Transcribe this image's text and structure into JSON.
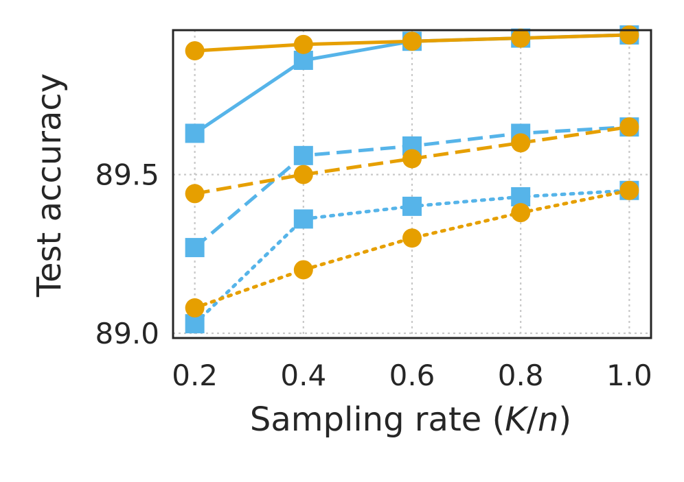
{
  "chart_data": {
    "type": "line",
    "title": "",
    "xlabel": "Sampling rate (",
    "xlabel_var_k": "K",
    "xlabel_slash": "/",
    "xlabel_var_n": "n",
    "xlabel_close": ")",
    "ylabel": "Test accuracy",
    "x": [
      0.2,
      0.4,
      0.6,
      0.8,
      1.0
    ],
    "x_tick_labels": [
      "0.2",
      "0.4",
      "0.6",
      "0.8",
      "1.0"
    ],
    "y_ticks": [
      89.0,
      89.5
    ],
    "y_tick_labels": [
      "89.0",
      "89.5"
    ],
    "xlim": [
      0.16,
      1.04
    ],
    "ylim": [
      88.985,
      89.955
    ],
    "grid": true,
    "legend": "none",
    "series": [
      {
        "name": "blue-solid",
        "color": "#56B4E9",
        "dash": "solid",
        "marker": "square",
        "values": [
          89.63,
          89.86,
          89.92,
          89.93,
          89.94
        ]
      },
      {
        "name": "orange-solid",
        "color": "#E69F00",
        "dash": "solid",
        "marker": "circle",
        "values": [
          89.89,
          89.91,
          89.92,
          89.93,
          89.94
        ]
      },
      {
        "name": "blue-dashed",
        "color": "#56B4E9",
        "dash": "dashed",
        "marker": "square",
        "values": [
          89.27,
          89.56,
          89.59,
          89.63,
          89.65
        ]
      },
      {
        "name": "orange-dashed",
        "color": "#E69F00",
        "dash": "dashed",
        "marker": "circle",
        "values": [
          89.44,
          89.5,
          89.55,
          89.6,
          89.65
        ]
      },
      {
        "name": "blue-dotted",
        "color": "#56B4E9",
        "dash": "dotted",
        "marker": "square",
        "values": [
          89.03,
          89.36,
          89.4,
          89.43,
          89.45
        ]
      },
      {
        "name": "orange-dotted",
        "color": "#E69F00",
        "dash": "dotted",
        "marker": "circle",
        "values": [
          89.08,
          89.2,
          89.3,
          89.38,
          89.45
        ]
      }
    ]
  }
}
